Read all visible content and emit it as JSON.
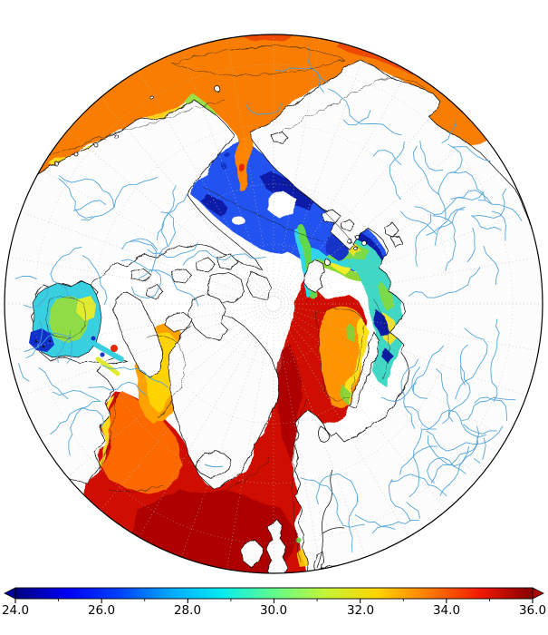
{
  "figure": {
    "kind": "polar stereographic field map with colorbar",
    "region": "Arctic / Northern Hemisphere"
  },
  "colorbar": {
    "orientation": "horizontal",
    "range_min": 24.0,
    "range_max": 36.0,
    "ticks": [
      {
        "label": "24.0",
        "value": 24.0
      },
      {
        "label": "26.0",
        "value": 26.0
      },
      {
        "label": "28.0",
        "value": 28.0
      },
      {
        "label": "30.0",
        "value": 30.0
      },
      {
        "label": "32.0",
        "value": 32.0
      },
      {
        "label": "34.0",
        "value": 34.0
      },
      {
        "label": "36.0",
        "value": 36.0
      }
    ],
    "minor_tick_step": 1.0,
    "stops": [
      {
        "color": "#000080"
      },
      {
        "color": "#0000f5"
      },
      {
        "color": "#0040ff"
      },
      {
        "color": "#00a8ff"
      },
      {
        "color": "#06ecef"
      },
      {
        "color": "#61fc8b"
      },
      {
        "color": "#c4f437"
      },
      {
        "color": "#ffd400"
      },
      {
        "color": "#ff7a00"
      },
      {
        "color": "#f01800"
      },
      {
        "color": "#850000"
      }
    ],
    "left_arrow_color": "#0000a0",
    "right_arrow_color": "#b40000"
  },
  "map": {
    "colors": {
      "background": "#ffffff",
      "land": "#fcfcfc",
      "coast": "#161616",
      "river": "#4aa0d8",
      "graticule": "#bdbdbd",
      "ice": "#ffffff",
      "contour": "#1c1c1c",
      "outline": "#000000"
    },
    "regions": {
      "bering_sea": {
        "color": "#f87d00",
        "approx_salinity": "32.5-33.5"
      },
      "bering_red": {
        "color": "#ea3c00",
        "approx_salinity": "34"
      },
      "bering_yellow": {
        "color": "#ffd81e",
        "approx_salinity": "31.5"
      },
      "anadyr_yellow": {
        "color": "#f2e62a",
        "approx_salinity": "31.5"
      },
      "anadyr_green": {
        "color": "#8adf3a",
        "approx_salinity": "30.5"
      },
      "yukon_green": {
        "color": "#9be04a",
        "approx_salinity": "30.5"
      },
      "strait_plume": {
        "color": "#ff8400",
        "approx_salinity": "33"
      },
      "strait_red": {
        "color": "#e62800",
        "approx_salinity": "34"
      },
      "kotzebue_navy": {
        "color": "#1030c8",
        "approx_salinity": "25.5"
      },
      "chukchi_blue": {
        "color": "#2353f0",
        "approx_salinity": "26"
      },
      "chukchi_navy": {
        "color": "#0b1ea8",
        "approx_salinity": "24.5"
      },
      "chukchi_cyan": {
        "color": "#2ed3f0",
        "approx_salinity": "28"
      },
      "ess_green": {
        "color": "#8ed631",
        "approx_salinity": "30.5"
      },
      "ess_yellow": {
        "color": "#f3ef2a",
        "approx_salinity": "31.5"
      },
      "kara_sea": {
        "color": "#3fd8c4",
        "approx_salinity": "28.5"
      },
      "kara_green": {
        "color": "#83d93a",
        "approx_salinity": "30.5"
      },
      "kara_yellow": {
        "color": "#eee32b",
        "approx_salinity": "31.5"
      },
      "kara_navy": {
        "color": "#0a1fa5",
        "approx_salinity": "24.5"
      },
      "svalbard_pocket": {
        "color": "#1334c8",
        "approx_salinity": "25.5"
      },
      "fram_green": {
        "color": "#5fd848",
        "approx_salinity": "30"
      },
      "fram_cyan": {
        "color": "#2fd6e8",
        "approx_salinity": "28"
      },
      "atlantic": {
        "color": "#cf1000",
        "approx_salinity": "35"
      },
      "atlantic_dark": {
        "color": "#a80000",
        "approx_salinity": "35.5"
      },
      "barents_orange": {
        "color": "#ff9300",
        "approx_salinity": "33"
      },
      "barents_yellow": {
        "color": "#ffe01e",
        "approx_salinity": "31.5"
      },
      "barents_green": {
        "color": "#7fd43c",
        "approx_salinity": "30.5"
      },
      "labrador_orange": {
        "color": "#ff7300",
        "approx_salinity": "33"
      },
      "labrador_yellow": {
        "color": "#ffd81e",
        "approx_salinity": "31.5"
      },
      "baffin_orange": {
        "color": "#ffa200",
        "approx_salinity": "32.5"
      },
      "baffin_yellow": {
        "color": "#ffd300",
        "approx_salinity": "31.5"
      },
      "hudson_bay": {
        "color": "#38cfe0",
        "approx_salinity": "28"
      },
      "hudson_green": {
        "color": "#8fdc46",
        "approx_salinity": "30.5"
      },
      "hudson_yellow": {
        "color": "#e0ea2e",
        "approx_salinity": "31"
      },
      "hudson_navy": {
        "color": "#1030cc",
        "approx_salinity": "25"
      },
      "hudson_red": {
        "color": "#e62800",
        "approx_salinity": "34"
      },
      "egreenland_navy": {
        "color": "#1334c8",
        "approx_salinity": "25.5"
      },
      "egreenland_cyan": {
        "color": "#2fd6e8",
        "approx_salinity": "28"
      },
      "skagerrak_yellow": {
        "color": "#ffcc00",
        "approx_salinity": "31.5"
      },
      "northsea_green": {
        "color": "#6fd04a",
        "approx_salinity": "30.5"
      }
    }
  }
}
